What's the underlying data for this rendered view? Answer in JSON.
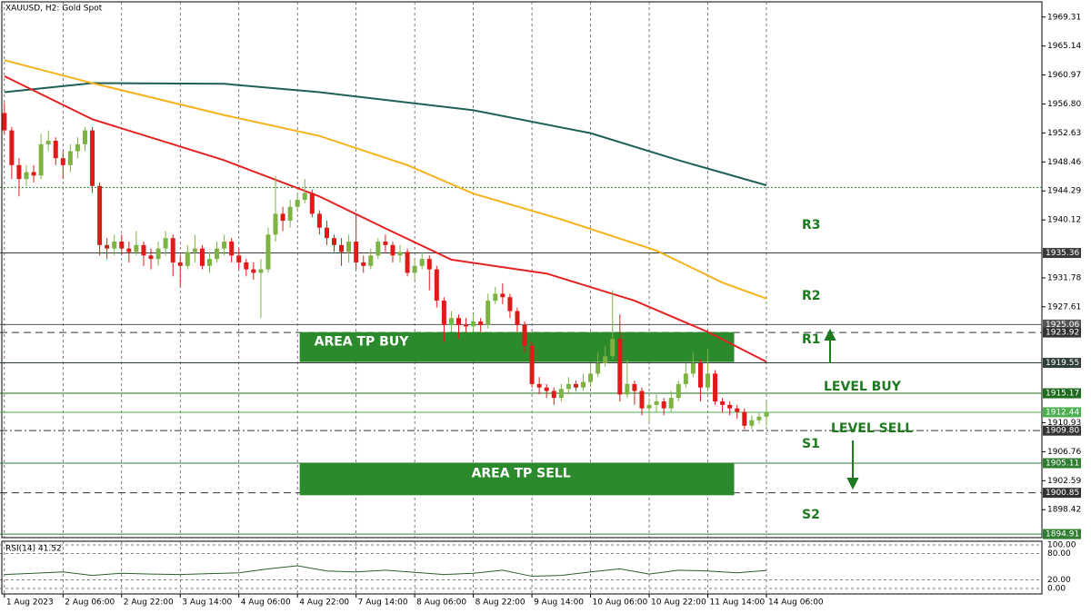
{
  "chart_data": {
    "type": "candlestick",
    "title": "XAUUSD, H2:  Gold Spot",
    "up_color": "#7cb342",
    "down_color": "#e01919",
    "xlim": [
      -0.6,
      141.6
    ],
    "ylim": [
      1894.4,
      1971.5
    ],
    "yticks": [
      1969.31,
      1965.14,
      1960.97,
      {
        "value": 1956.8,
        "label": "1956.80"
      },
      1952.63,
      1948.46,
      1944.29,
      1940.12,
      1931.78,
      1927.61,
      1910.93,
      1906.76,
      1902.59,
      1898.42
    ],
    "xticks": [
      {
        "value": 0,
        "label": "1 Aug 2023"
      },
      {
        "value": 8,
        "label": "2 Aug 06:00"
      },
      {
        "value": 16,
        "label": "2 Aug 22:00"
      },
      {
        "value": 24,
        "label": "3 Aug 14:00"
      },
      {
        "value": 32,
        "label": "4 Aug 06:00"
      },
      {
        "value": 40,
        "label": "4 Aug 22:00"
      },
      {
        "value": 48,
        "label": "7 Aug 14:00"
      },
      {
        "value": 56,
        "label": "8 Aug 06:00"
      },
      {
        "value": 64,
        "label": "8 Aug 22:00"
      },
      {
        "value": 72,
        "label": "9 Aug 14:00"
      },
      {
        "value": 80,
        "label": "10 Aug 06:00"
      },
      {
        "value": 88,
        "label": "10 Aug 22:00"
      },
      {
        "value": 96,
        "label": "11 Aug 14:00"
      },
      {
        "value": 104,
        "label": "14 Aug 06:00"
      }
    ],
    "ohlc": [
      [
        1955.5,
        1957,
        1952.5,
        1953
      ],
      [
        1953,
        1953.5,
        1946,
        1948
      ],
      [
        1948,
        1949,
        1943.5,
        1946
      ],
      [
        1946,
        1948,
        1945,
        1947
      ],
      [
        1947,
        1948,
        1945.5,
        1946.5
      ],
      [
        1946.5,
        1952.5,
        1946,
        1951
      ],
      [
        1951,
        1953,
        1950,
        1951.5
      ],
      [
        1951.5,
        1952,
        1948,
        1949
      ],
      [
        1949,
        1950,
        1946,
        1948
      ],
      [
        1948,
        1951,
        1947,
        1950
      ],
      [
        1950,
        1952,
        1949,
        1951
      ],
      [
        1951,
        1953.5,
        1950,
        1953
      ],
      [
        1953,
        1953.5,
        1944,
        1945
      ],
      [
        1945,
        1945.5,
        1935,
        1936.5
      ],
      [
        1936.5,
        1937.5,
        1934.5,
        1936
      ],
      [
        1936,
        1938,
        1935,
        1937
      ],
      [
        1937,
        1938,
        1935,
        1936
      ],
      [
        1936,
        1937,
        1934,
        1935.5
      ],
      [
        1935.5,
        1938.5,
        1935,
        1936.5
      ],
      [
        1936.5,
        1937,
        1933.5,
        1935
      ],
      [
        1935,
        1936,
        1933,
        1934.5
      ],
      [
        1934.5,
        1937,
        1933.5,
        1936
      ],
      [
        1936,
        1938.5,
        1935,
        1937.5
      ],
      [
        1937.5,
        1938,
        1932,
        1934
      ],
      [
        1934,
        1935,
        1930.5,
        1933.5
      ],
      [
        1933.5,
        1936.5,
        1933,
        1935.5
      ],
      [
        1935.5,
        1938,
        1934,
        1936
      ],
      [
        1936,
        1936.5,
        1933,
        1933.5
      ],
      [
        1933.5,
        1935.5,
        1932.5,
        1934.5
      ],
      [
        1934.5,
        1937,
        1934,
        1936
      ],
      [
        1936,
        1938,
        1935,
        1937
      ],
      [
        1937,
        1937.5,
        1934,
        1935
      ],
      [
        1935,
        1936,
        1933,
        1934
      ],
      [
        1934,
        1934.5,
        1932,
        1933
      ],
      [
        1933,
        1934,
        1931.5,
        1932.5
      ],
      [
        1932.5,
        1934.5,
        1926,
        1933
      ],
      [
        1933,
        1939,
        1932.5,
        1938
      ],
      [
        1938,
        1946.5,
        1937,
        1941
      ],
      [
        1941,
        1942,
        1938.5,
        1940
      ],
      [
        1940,
        1943,
        1939,
        1942
      ],
      [
        1942,
        1944,
        1941.5,
        1943
      ],
      [
        1943,
        1946,
        1942.5,
        1944
      ],
      [
        1944,
        1944.5,
        1940.5,
        1941
      ],
      [
        1941,
        1941.5,
        1938,
        1939
      ],
      [
        1939,
        1940,
        1936.5,
        1937.5
      ],
      [
        1937.5,
        1938,
        1935.5,
        1936.5
      ],
      [
        1936.5,
        1937.5,
        1933.5,
        1935.5
      ],
      [
        1935.5,
        1938,
        1934,
        1937
      ],
      [
        1937,
        1941,
        1933,
        1934
      ],
      [
        1934,
        1935,
        1932.5,
        1933.5
      ],
      [
        1933.5,
        1936,
        1933,
        1935
      ],
      [
        1935,
        1937.5,
        1934.5,
        1937
      ],
      [
        1937,
        1938,
        1935.5,
        1936.5
      ],
      [
        1936.5,
        1937,
        1934,
        1935
      ],
      [
        1935,
        1936.5,
        1934,
        1935.5
      ],
      [
        1935.5,
        1936,
        1932,
        1932.5
      ],
      [
        1932.5,
        1934.5,
        1931.5,
        1933.5
      ],
      [
        1933.5,
        1935.5,
        1933,
        1934.5
      ],
      [
        1934.5,
        1935,
        1930,
        1933
      ],
      [
        1933,
        1933.5,
        1927.5,
        1928.5
      ],
      [
        1928.5,
        1929,
        1922.5,
        1925
      ],
      [
        1925,
        1927,
        1924,
        1926
      ],
      [
        1926,
        1926.5,
        1923,
        1925
      ],
      [
        1925,
        1926,
        1924,
        1924.8
      ],
      [
        1924.8,
        1926.5,
        1924,
        1925.5
      ],
      [
        1925.5,
        1926,
        1924,
        1925
      ],
      [
        1925,
        1929.5,
        1924.5,
        1928.5
      ],
      [
        1928.5,
        1930.5,
        1928,
        1929.5
      ],
      [
        1929.5,
        1931,
        1928,
        1929
      ],
      [
        1929,
        1929.5,
        1926,
        1927
      ],
      [
        1927,
        1927.5,
        1924,
        1925
      ],
      [
        1925,
        1925.5,
        1921,
        1922
      ],
      [
        1922,
        1922.5,
        1916,
        1916.5
      ],
      [
        1916.5,
        1917.5,
        1915,
        1916
      ],
      [
        1916,
        1916.5,
        1914.5,
        1915.5
      ],
      [
        1915.5,
        1916,
        1913.5,
        1914.5
      ],
      [
        1914.5,
        1916.5,
        1914,
        1915.8
      ],
      [
        1915.8,
        1917.5,
        1915,
        1916.5
      ],
      [
        1916.5,
        1917,
        1915.5,
        1916
      ],
      [
        1916,
        1918,
        1915.5,
        1916.8
      ],
      [
        1916.8,
        1919.5,
        1916,
        1918
      ],
      [
        1918,
        1921,
        1917.5,
        1919.5
      ],
      [
        1919.5,
        1922,
        1919,
        1920.5
      ],
      [
        1920.5,
        1930,
        1920,
        1923
      ],
      [
        1923,
        1926.5,
        1914,
        1915
      ],
      [
        1915,
        1920,
        1914.5,
        1916.5
      ],
      [
        1916.5,
        1917,
        1913.5,
        1915.5
      ],
      [
        1915.5,
        1916,
        1912,
        1913
      ],
      [
        1913,
        1914.5,
        1911,
        1913.5
      ],
      [
        1913.5,
        1915,
        1912.5,
        1914
      ],
      [
        1914,
        1914.5,
        1912,
        1913
      ],
      [
        1913,
        1915.5,
        1912.5,
        1914.5
      ],
      [
        1914.5,
        1917,
        1914,
        1916.5
      ],
      [
        1916.5,
        1919.5,
        1916,
        1918
      ],
      [
        1918,
        1921,
        1917.5,
        1919.5
      ],
      [
        1919.5,
        1920,
        1914,
        1916
      ],
      [
        1916,
        1921.5,
        1915.5,
        1918
      ],
      [
        1918,
        1918.5,
        1913.5,
        1914
      ],
      [
        1914,
        1914.5,
        1912.5,
        1913.5
      ],
      [
        1913.5,
        1914,
        1912,
        1913
      ],
      [
        1913,
        1913.5,
        1911.5,
        1912.5
      ],
      [
        1912.5,
        1913,
        1910,
        1910.5
      ],
      [
        1910.5,
        1912,
        1910,
        1911.3
      ],
      [
        1911.3,
        1912.5,
        1910.8,
        1911.8
      ],
      [
        1911.8,
        1914,
        1910.5,
        1912.44
      ]
    ],
    "moving_averages": [
      {
        "color": "#1f5f55",
        "x": [
          0,
          12,
          30,
          43,
          64,
          80,
          92,
          104
        ],
        "values": [
          1958.5,
          1959.8,
          1959.7,
          1958.5,
          1955.9,
          1952.6,
          1948.7,
          1945.1
        ]
      },
      {
        "color": "#f5b21b",
        "x": [
          0,
          12,
          30,
          43,
          55,
          64,
          76,
          89,
          98,
          104
        ],
        "values": [
          1963.1,
          1959.8,
          1955.2,
          1952.2,
          1948,
          1943.9,
          1940.2,
          1935.7,
          1931.1,
          1928.8
        ]
      },
      {
        "color": "#e32222",
        "x": [
          0,
          12,
          30,
          43,
          52,
          61,
          74,
          86,
          96,
          104
        ],
        "values": [
          1960.8,
          1954.6,
          1948.7,
          1943.5,
          1938.9,
          1934.4,
          1932.4,
          1928.5,
          1924,
          1919.7
        ]
      }
    ],
    "levels": [
      {
        "value": 1935.36,
        "label": "1935.36",
        "color": "#3a3a3a",
        "style": "solid"
      },
      {
        "value": 1925.06,
        "label": "1925.06",
        "color": "#555555",
        "style": "solid"
      },
      {
        "value": 1923.92,
        "label": "1923.92",
        "color": "#333333",
        "style": "dashed"
      },
      {
        "value": 1919.55,
        "label": "1919.55",
        "color": "#2f3e36",
        "style": "solid"
      },
      {
        "value": 1915.17,
        "label": "1915.17",
        "color": "#1e6b1e",
        "style": "solid"
      },
      {
        "value": 1912.44,
        "label": "1912.44",
        "color": "#4caf50",
        "style": "solid"
      },
      {
        "value": 1909.8,
        "label": "1909.80",
        "color": "#333333",
        "style": "dashdot"
      },
      {
        "value": 1905.11,
        "label": "1905.11",
        "color": "#2e7d32",
        "style": "solid"
      },
      {
        "value": 1900.85,
        "label": "1900.85",
        "color": "#333333",
        "style": "dashed"
      },
      {
        "value": 1894.91,
        "label": "1894.91",
        "color": "#2e7d32",
        "style": "solid"
      }
    ],
    "extra_lines": [
      1944.8
    ],
    "areas": [
      {
        "label": "AREA TP BUY",
        "x": [
          40.3,
          99.6
        ],
        "y": [
          1919.67,
          1923.97
        ],
        "color": "#2b8a2b"
      },
      {
        "label": "AREA TP SELL",
        "x": [
          40.3,
          99.6
        ],
        "y": [
          1900.5,
          1905.08
        ],
        "color": "#2b8a2b"
      }
    ],
    "pivot_labels": [
      "R3",
      "R2",
      "R1",
      "S1",
      "S2"
    ],
    "level_labels": [
      "LEVEL BUY",
      "LEVEL SELL"
    ],
    "rsi": {
      "label": "RSI(14) 41.52",
      "color": "#2e5e2e",
      "x": [
        0,
        4,
        8,
        12,
        16,
        20,
        24,
        28,
        32,
        36,
        40,
        44,
        48,
        52,
        56,
        60,
        64,
        68,
        72,
        76,
        80,
        84,
        88,
        92,
        96,
        100,
        104
      ],
      "values": [
        32,
        35,
        38,
        30,
        35,
        33,
        32,
        34,
        36,
        45,
        52,
        40,
        38,
        42,
        37,
        32,
        35,
        42,
        28,
        30,
        38,
        45,
        33,
        42,
        40,
        36,
        41.52
      ],
      "ylim": [
        0,
        100
      ],
      "yticks": [
        {
          "value": 100,
          "label": "100.00"
        },
        {
          "value": 80,
          "label": "80.00"
        },
        {
          "value": 20,
          "label": "20.00"
        },
        {
          "value": 0,
          "label": "0.00"
        }
      ]
    }
  }
}
